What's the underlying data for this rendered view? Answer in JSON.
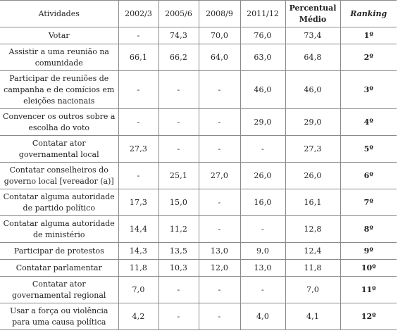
{
  "headers": [
    "Atividades",
    "2002/3",
    "2005/6",
    "2008/9",
    "2011/12",
    "Percentual Médio",
    "Ranking"
  ],
  "rows": [
    {
      "activity": "Votar",
      "v2002": "-",
      "v2005": "74,3",
      "v2008": "70,0",
      "v2011": "76,0",
      "pct": "73,4",
      "rank": "1º"
    },
    {
      "activity": "Assistir a uma reunião na comunidade",
      "v2002": "66,1",
      "v2005": "66,2",
      "v2008": "64,0",
      "v2011": "63,0",
      "pct": "64,8",
      "rank": "2º"
    },
    {
      "activity": "Participar de reuniões de campanha e de comícios em eleições nacionais",
      "v2002": "-",
      "v2005": "-",
      "v2008": "-",
      "v2011": "46,0",
      "pct": "46,0",
      "rank": "3º"
    },
    {
      "activity": "Convencer os outros sobre a escolha do voto",
      "v2002": "-",
      "v2005": "-",
      "v2008": "-",
      "v2011": "29,0",
      "pct": "29,0",
      "rank": "4º"
    },
    {
      "activity": "Contatar ator governamental local",
      "v2002": "27,3",
      "v2005": "-",
      "v2008": "-",
      "v2011": "-",
      "pct": "27,3",
      "rank": "5º"
    },
    {
      "activity": "Contatar conselheiros do governo local [vereador (a)]",
      "v2002": "-",
      "v2005": "25,1",
      "v2008": "27,0",
      "v2011": "26,0",
      "pct": "26,0",
      "rank": "6º"
    },
    {
      "activity": "Contatar alguma autoridade de partido político",
      "v2002": "17,3",
      "v2005": "15,0",
      "v2008": "-",
      "v2011": "16,0",
      "pct": "16,1",
      "rank": "7º"
    },
    {
      "activity": "Contatar alguma autoridade de ministério",
      "v2002": "14,4",
      "v2005": "11,2",
      "v2008": "-",
      "v2011": "-",
      "pct": "12,8",
      "rank": "8º"
    },
    {
      "activity": "Participar de protestos",
      "v2002": "14,3",
      "v2005": "13,5",
      "v2008": "13,0",
      "v2011": "9,0",
      "pct": "12,4",
      "rank": "9º"
    },
    {
      "activity": "Contatar parlamentar",
      "v2002": "11,8",
      "v2005": "10,3",
      "v2008": "12,0",
      "v2011": "13,0",
      "pct": "11,8",
      "rank": "10º"
    },
    {
      "activity": "Contatar ator governamental regional",
      "v2002": "7,0",
      "v2005": "-",
      "v2008": "-",
      "v2011": "-",
      "pct": "7,0",
      "rank": "11º"
    },
    {
      "activity": "Usar a força ou violência para uma causa política",
      "v2002": "4,2",
      "v2005": "-",
      "v2008": "-",
      "v2011": "4,0",
      "pct": "4,1",
      "rank": "12º"
    }
  ]
}
